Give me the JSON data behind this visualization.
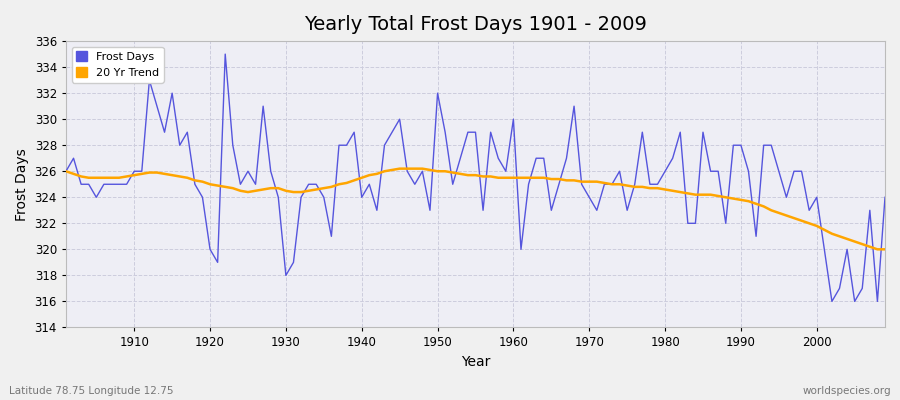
{
  "title": "Yearly Total Frost Days 1901 - 2009",
  "xlabel": "Year",
  "ylabel": "Frost Days",
  "subtitle": "Latitude 78.75 Longitude 12.75",
  "watermark": "worldspecies.org",
  "years": [
    1901,
    1902,
    1903,
    1904,
    1905,
    1906,
    1907,
    1908,
    1909,
    1910,
    1911,
    1912,
    1913,
    1914,
    1915,
    1916,
    1917,
    1918,
    1919,
    1920,
    1921,
    1922,
    1923,
    1924,
    1925,
    1926,
    1927,
    1928,
    1929,
    1930,
    1931,
    1932,
    1933,
    1934,
    1935,
    1936,
    1937,
    1938,
    1939,
    1940,
    1941,
    1942,
    1943,
    1944,
    1945,
    1946,
    1947,
    1948,
    1949,
    1950,
    1951,
    1952,
    1953,
    1954,
    1955,
    1956,
    1957,
    1958,
    1959,
    1960,
    1961,
    1962,
    1963,
    1964,
    1965,
    1966,
    1967,
    1968,
    1969,
    1970,
    1971,
    1972,
    1973,
    1974,
    1975,
    1976,
    1977,
    1978,
    1979,
    1980,
    1981,
    1982,
    1983,
    1984,
    1985,
    1986,
    1987,
    1988,
    1989,
    1990,
    1991,
    1992,
    1993,
    1994,
    1995,
    1996,
    1997,
    1998,
    1999,
    2000,
    2001,
    2002,
    2003,
    2004,
    2005,
    2006,
    2007,
    2008,
    2009
  ],
  "frost_days": [
    326,
    327,
    325,
    325,
    324,
    325,
    325,
    325,
    325,
    326,
    326,
    333,
    331,
    329,
    332,
    328,
    329,
    325,
    324,
    320,
    319,
    335,
    328,
    325,
    326,
    325,
    331,
    326,
    324,
    318,
    319,
    324,
    325,
    325,
    324,
    321,
    328,
    328,
    329,
    324,
    325,
    323,
    328,
    329,
    330,
    326,
    325,
    326,
    323,
    332,
    329,
    325,
    327,
    329,
    329,
    323,
    329,
    327,
    326,
    330,
    320,
    325,
    327,
    327,
    323,
    325,
    327,
    331,
    325,
    324,
    323,
    325,
    325,
    326,
    323,
    325,
    329,
    325,
    325,
    326,
    327,
    329,
    322,
    322,
    329,
    326,
    326,
    322,
    328,
    328,
    326,
    321,
    328,
    328,
    326,
    324,
    326,
    326,
    323,
    324,
    320,
    316,
    317,
    320,
    316,
    317,
    323,
    316,
    324
  ],
  "trend_years": [
    1901,
    1902,
    1903,
    1904,
    1905,
    1906,
    1907,
    1908,
    1909,
    1910,
    1911,
    1912,
    1913,
    1914,
    1915,
    1916,
    1917,
    1918,
    1919,
    1920,
    1921,
    1922,
    1923,
    1924,
    1925,
    1926,
    1927,
    1928,
    1929,
    1930,
    1931,
    1932,
    1933,
    1934,
    1935,
    1936,
    1937,
    1938,
    1939,
    1940,
    1941,
    1942,
    1943,
    1944,
    1945,
    1946,
    1947,
    1948,
    1949,
    1950,
    1951,
    1952,
    1953,
    1954,
    1955,
    1956,
    1957,
    1958,
    1959,
    1960,
    1961,
    1962,
    1963,
    1964,
    1965,
    1966,
    1967,
    1968,
    1969,
    1970,
    1971,
    1972,
    1973,
    1974,
    1975,
    1976,
    1977,
    1978,
    1979,
    1980,
    1981,
    1982,
    1983,
    1984,
    1985,
    1986,
    1987,
    1988,
    1989,
    1990,
    1991,
    1992,
    1993,
    1994,
    1995,
    1996,
    1997,
    1998,
    1999,
    2000,
    2001,
    2002,
    2003,
    2004,
    2005,
    2006,
    2007,
    2008,
    2009
  ],
  "trend_values": [
    326.0,
    325.8,
    325.6,
    325.5,
    325.5,
    325.5,
    325.5,
    325.5,
    325.6,
    325.7,
    325.8,
    325.9,
    325.9,
    325.8,
    325.7,
    325.6,
    325.5,
    325.3,
    325.2,
    325.0,
    324.9,
    324.8,
    324.7,
    324.5,
    324.4,
    324.5,
    324.6,
    324.7,
    324.7,
    324.5,
    324.4,
    324.4,
    324.5,
    324.6,
    324.7,
    324.8,
    325.0,
    325.1,
    325.3,
    325.5,
    325.7,
    325.8,
    326.0,
    326.1,
    326.2,
    326.2,
    326.2,
    326.2,
    326.1,
    326.0,
    326.0,
    325.9,
    325.8,
    325.7,
    325.7,
    325.6,
    325.6,
    325.5,
    325.5,
    325.5,
    325.5,
    325.5,
    325.5,
    325.5,
    325.4,
    325.4,
    325.3,
    325.3,
    325.2,
    325.2,
    325.2,
    325.1,
    325.0,
    325.0,
    324.9,
    324.8,
    324.8,
    324.7,
    324.7,
    324.6,
    324.5,
    324.4,
    324.3,
    324.2,
    324.2,
    324.2,
    324.1,
    324.0,
    323.9,
    323.8,
    323.7,
    323.5,
    323.3,
    323.0,
    322.8,
    322.6,
    322.4,
    322.2,
    322.0,
    321.8,
    321.5,
    321.2,
    321.0,
    320.8,
    320.6,
    320.4,
    320.2,
    320.0,
    320.0
  ],
  "line_color": "#5555dd",
  "trend_color": "#ffa500",
  "bg_color": "#f0f0f0",
  "plot_bg_color": "#eeeef5",
  "grid_color": "#ccccdd",
  "ylim": [
    314,
    336
  ],
  "yticks": [
    314,
    316,
    318,
    320,
    322,
    324,
    326,
    328,
    330,
    332,
    334,
    336
  ],
  "xticks": [
    1910,
    1920,
    1930,
    1940,
    1950,
    1960,
    1970,
    1980,
    1990,
    2000
  ],
  "title_fontsize": 14,
  "label_fontsize": 10,
  "tick_fontsize": 8.5
}
